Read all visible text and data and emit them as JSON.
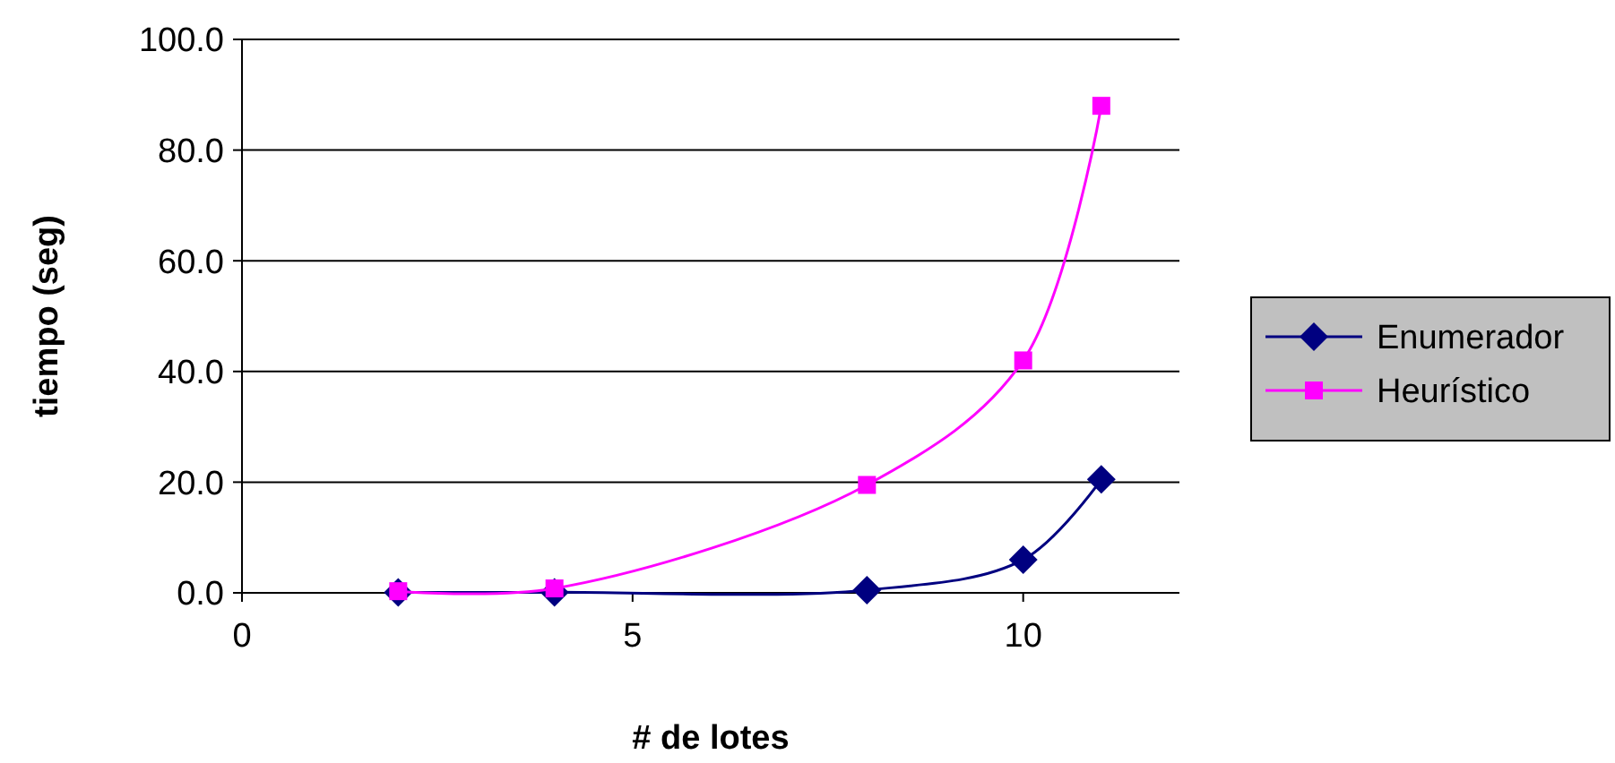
{
  "chart_data": {
    "type": "line",
    "xlabel": "# de lotes",
    "ylabel": "tiempo (seg)",
    "xlim": [
      0,
      12
    ],
    "xticks": [
      0,
      5,
      10
    ],
    "ylim": [
      0,
      100
    ],
    "yticks": [
      {
        "value": 0,
        "label": "0.0"
      },
      {
        "value": 20,
        "label": "20.0"
      },
      {
        "value": 40,
        "label": "40.0"
      },
      {
        "value": 60,
        "label": "60.0"
      },
      {
        "value": 80,
        "label": "80.0"
      },
      {
        "value": 100,
        "label": "100.0"
      }
    ],
    "grid": "y",
    "legend": "right",
    "series": [
      {
        "name": "Enumerador",
        "color": "#000080",
        "marker": "diamond",
        "x": [
          2,
          4,
          8,
          10,
          11
        ],
        "values": [
          0.1,
          0.1,
          0.5,
          6,
          20.5
        ]
      },
      {
        "name": "Heurístico",
        "color": "#ff00ff",
        "marker": "square",
        "x": [
          2,
          4,
          8,
          10,
          11
        ],
        "values": [
          0.3,
          0.8,
          19.5,
          42,
          88
        ]
      }
    ]
  }
}
